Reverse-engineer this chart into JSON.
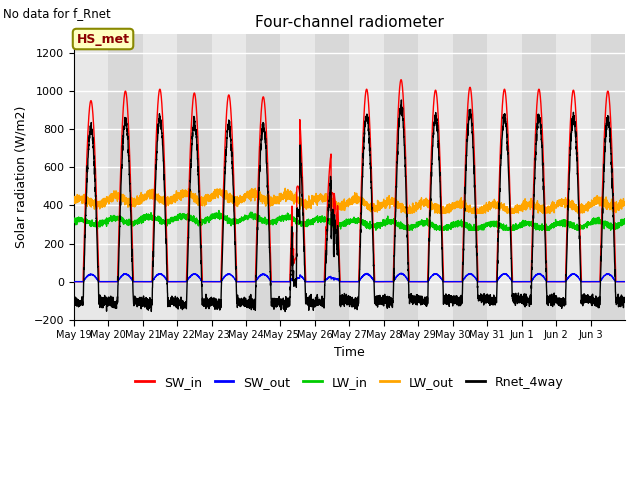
{
  "title": "Four-channel radiometer",
  "top_left_text": "No data for f_Rnet",
  "annotation_box": "HS_met",
  "xlabel": "Time",
  "ylabel": "Solar radiation (W/m2)",
  "ylim": [
    -200,
    1300
  ],
  "yticks": [
    -200,
    0,
    200,
    400,
    600,
    800,
    1000,
    1200
  ],
  "bg_color": "#ffffff",
  "plot_bg_color": "#d8d8d8",
  "stripe_color": "#e8e8e8",
  "grid_color": "#ffffff",
  "n_days": 16,
  "day_labels": [
    "May 19",
    "May 20",
    "May 21",
    "May 22",
    "May 23",
    "May 24",
    "May 25",
    "May 26",
    "May 27",
    "May 28",
    "May 29",
    "May 30",
    "May 31",
    "Jun 1",
    "Jun 2",
    "Jun 3"
  ],
  "SW_in_color": "#ff0000",
  "SW_out_color": "#0000ff",
  "LW_in_color": "#00cc00",
  "LW_out_color": "#ffa500",
  "Rnet_color": "#000000",
  "line_width": 1.0,
  "legend_labels": [
    "SW_in",
    "SW_out",
    "LW_in",
    "LW_out",
    "Rnet_4way"
  ]
}
